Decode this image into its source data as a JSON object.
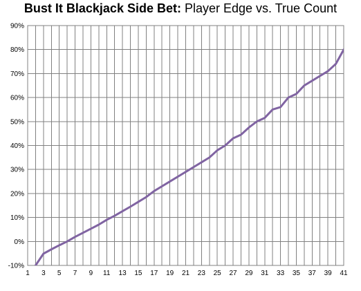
{
  "chart_data": {
    "type": "line",
    "title_bold": "Bust It Blackjack Side Bet:",
    "title_rest": "Player Edge vs. True Count",
    "xlabel": "",
    "ylabel": "",
    "x_tick_labels": [
      "1",
      "3",
      "5",
      "7",
      "9",
      "11",
      "13",
      "15",
      "17",
      "19",
      "21",
      "23",
      "25",
      "27",
      "29",
      "31",
      "33",
      "35",
      "37",
      "39",
      "41"
    ],
    "y_tick_labels": [
      "90%",
      "80%",
      "70%",
      "60%",
      "50%",
      "40%",
      "30%",
      "20%",
      "10%",
      "0%",
      "-10%"
    ],
    "xlim": [
      1,
      41
    ],
    "ylim": [
      -10,
      90
    ],
    "grid": true,
    "line_color": "#8064A2",
    "series": [
      {
        "x": [
          1,
          2,
          3,
          4,
          5,
          6,
          7,
          8,
          9,
          10,
          11,
          12,
          13,
          14,
          15,
          16,
          17,
          18,
          19,
          20,
          21,
          22,
          23,
          24,
          25,
          26,
          27,
          28,
          29,
          30,
          31,
          32,
          33,
          34,
          35,
          36,
          37,
          38,
          39,
          40,
          41
        ],
        "values": [
          -15,
          -10,
          -5.1,
          -3.3,
          -1.6,
          0,
          1.9,
          3.6,
          5.3,
          7.0,
          9.0,
          10.7,
          12.6,
          14.5,
          16.5,
          18.5,
          21.0,
          23.0,
          25.0,
          27.0,
          29.0,
          31.0,
          33.0,
          35.0,
          38.0,
          40.0,
          43.0,
          44.5,
          47.5,
          50.0,
          51.5,
          55.0,
          56.0,
          60.0,
          61.5,
          65.0,
          67.0,
          69.0,
          71.0,
          74.0,
          80.0
        ]
      }
    ]
  }
}
